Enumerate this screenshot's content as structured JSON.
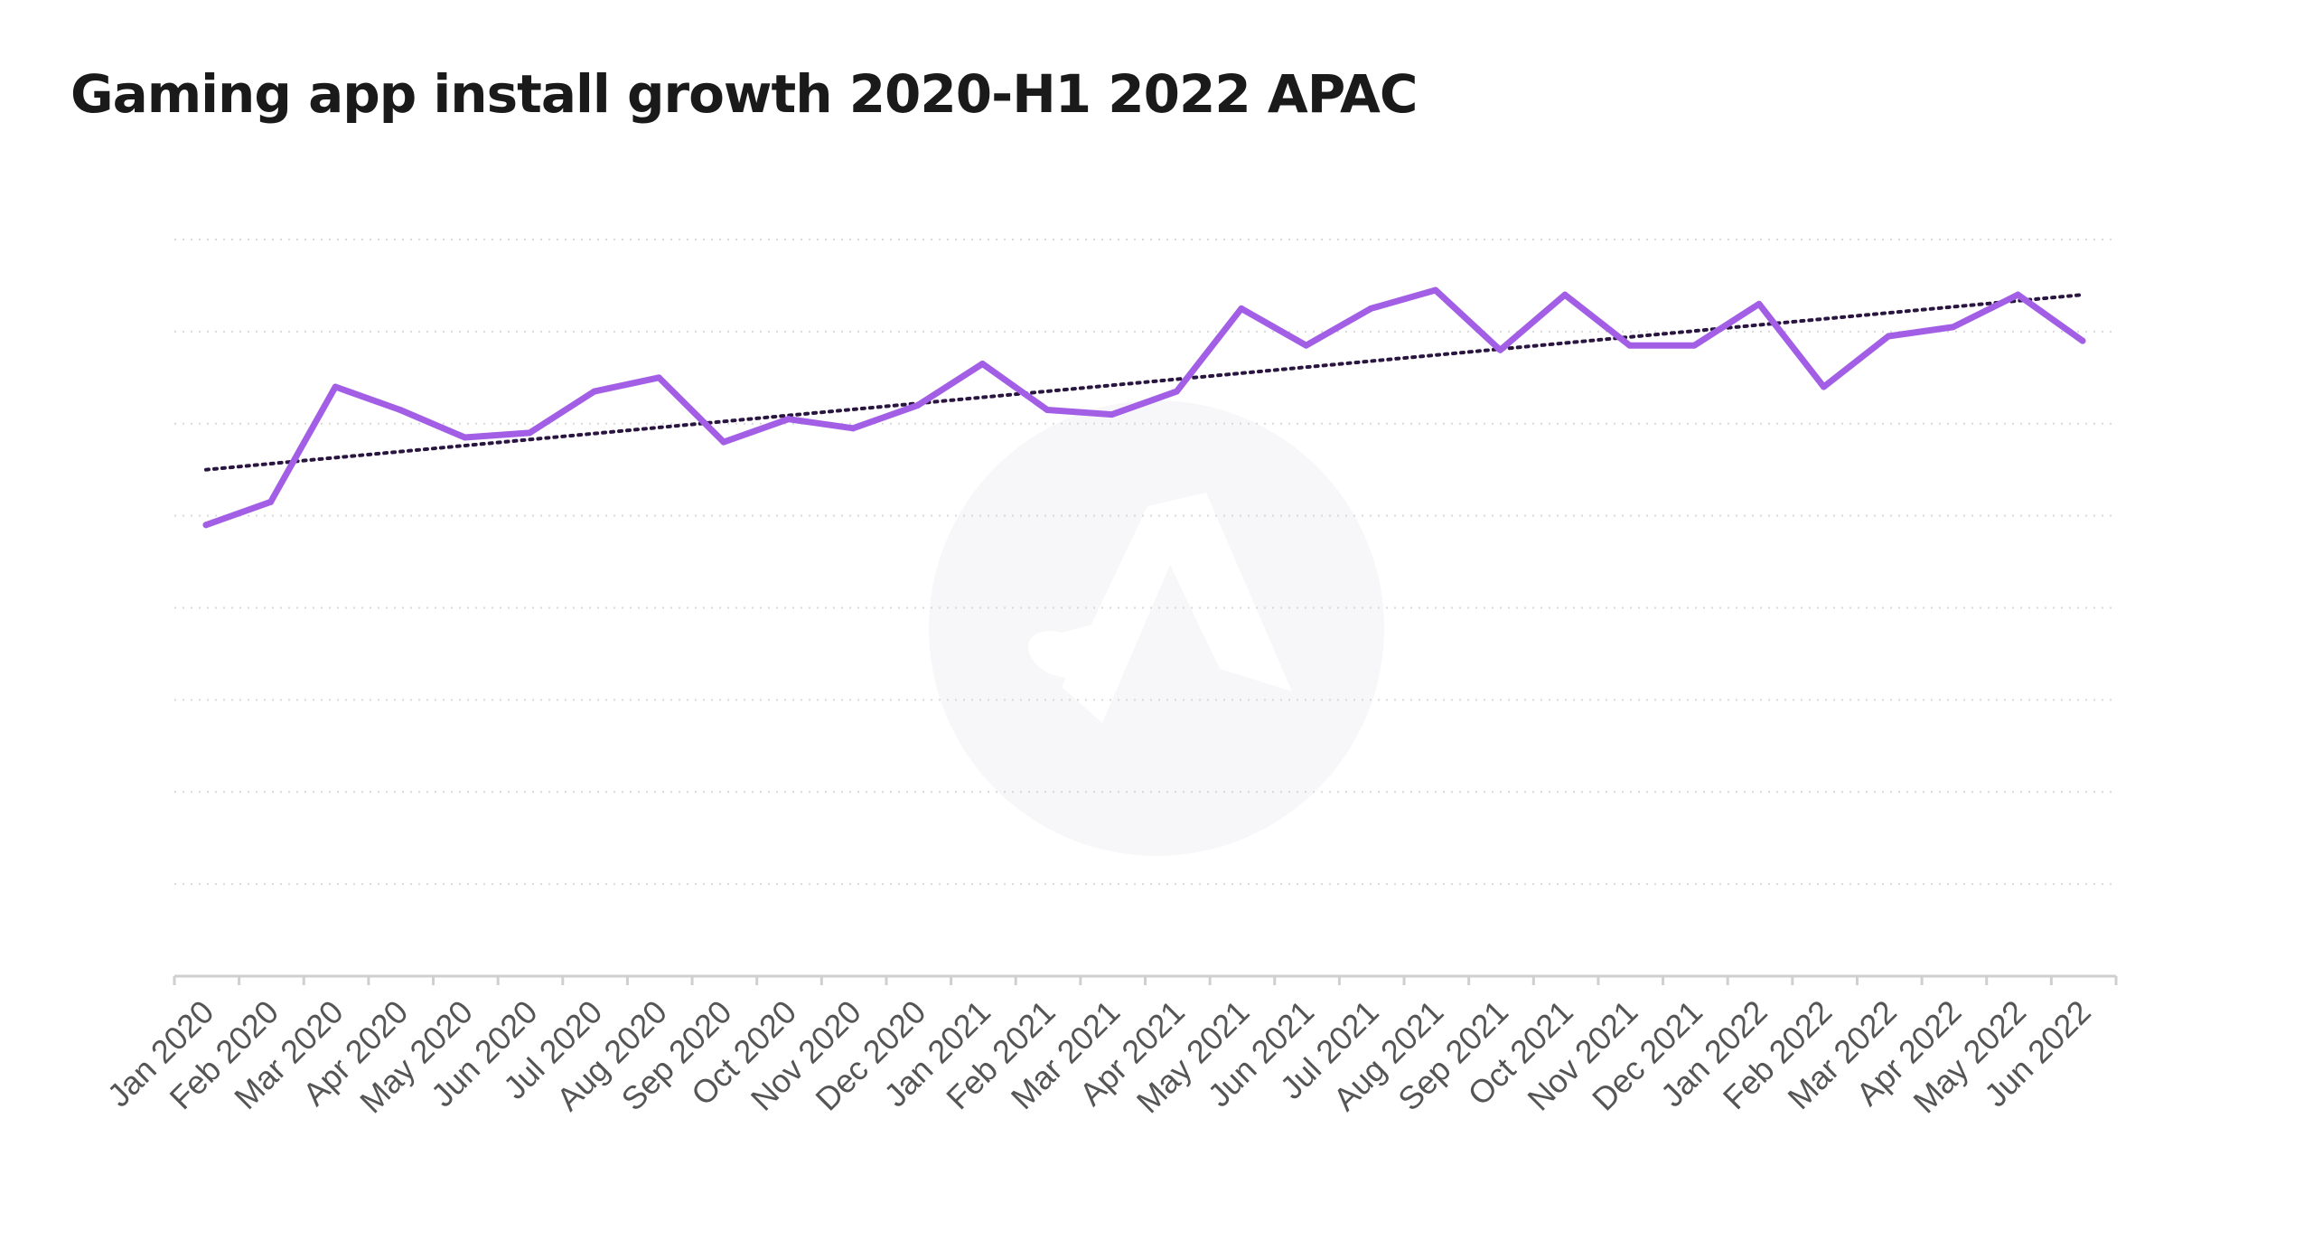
{
  "chart_data": {
    "type": "line",
    "title": "Gaming app install growth 2020-H1 2022 APAC",
    "xlabel": "",
    "ylabel": "",
    "categories": [
      "Jan 2020",
      "Feb 2020",
      "Mar 2020",
      "Apr 2020",
      "May 2020",
      "Jun 2020",
      "Jul 2020",
      "Aug 2020",
      "Sep 2020",
      "Oct 2020",
      "Nov 2020",
      "Dec 2020",
      "Jan 2021",
      "Feb 2021",
      "Mar 2021",
      "Apr 2021",
      "May 2021",
      "Jun 2021",
      "Jul 2021",
      "Aug 2021",
      "Sep 2021",
      "Oct 2021",
      "Nov 2021",
      "Dec 2021",
      "Jan 2022",
      "Feb 2022",
      "Mar 2022",
      "Apr 2022",
      "May 2022",
      "Jun 2022"
    ],
    "series": [
      {
        "values": [
          4.9,
          5.15,
          6.4,
          6.15,
          5.85,
          5.9,
          6.35,
          6.5,
          5.8,
          6.05,
          5.95,
          6.2,
          6.65,
          6.15,
          6.1,
          6.35,
          7.25,
          6.85,
          7.25,
          7.45,
          6.8,
          7.4,
          6.85,
          6.85,
          7.3,
          6.4,
          6.95,
          7.05,
          7.4,
          6.9
        ],
        "color": "#a35ee6"
      },
      {
        "name": "trendline",
        "style": "dotted",
        "start": 5.5,
        "end": 7.4,
        "color": "#2a1540"
      }
    ],
    "ylim": [
      0,
      8
    ],
    "grid": true,
    "legend": "none"
  }
}
